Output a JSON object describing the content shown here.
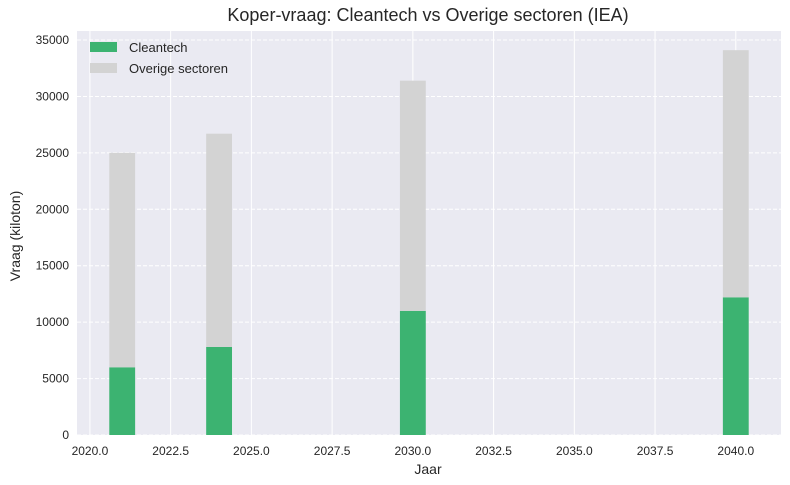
{
  "chart_data": {
    "type": "bar",
    "stacked": true,
    "title": "Koper-vraag: Cleantech vs Overige sectoren (IEA)",
    "xlabel": "Jaar",
    "ylabel": "Vraag (kiloton)",
    "x": [
      2021,
      2024,
      2030,
      2040
    ],
    "bar_width": 0.8,
    "series": [
      {
        "name": "Cleantech",
        "values": [
          6000,
          7800,
          11000,
          12200
        ],
        "color": "#3cb371"
      },
      {
        "name": "Overige sectoren",
        "values": [
          19000,
          18900,
          20400,
          21900
        ],
        "color": "#d3d3d3"
      }
    ],
    "xlim": [
      2019.6,
      2041.4
    ],
    "ylim": [
      0,
      35800
    ],
    "xticks": [
      "2020.0",
      "2022.5",
      "2025.0",
      "2027.5",
      "2030.0",
      "2032.5",
      "2035.0",
      "2037.5",
      "2040.0"
    ],
    "xtick_values": [
      2020,
      2022.5,
      2025,
      2027.5,
      2030,
      2032.5,
      2035,
      2037.5,
      2040
    ],
    "yticks": [
      "0",
      "5000",
      "10000",
      "15000",
      "20000",
      "25000",
      "30000",
      "35000"
    ],
    "ytick_values": [
      0,
      5000,
      10000,
      15000,
      20000,
      25000,
      30000,
      35000
    ],
    "grid": true,
    "legend": "top-left",
    "background": "#eaeaf2"
  }
}
